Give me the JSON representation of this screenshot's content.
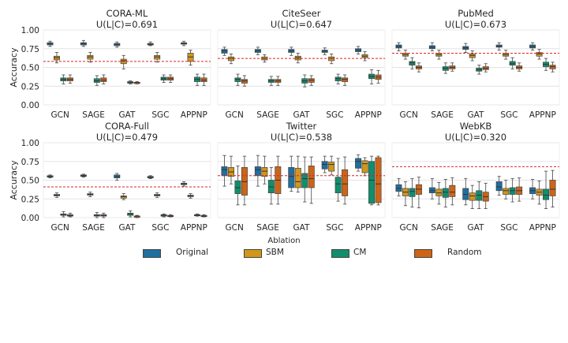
{
  "chart_data": [
    {
      "type": "box",
      "title": "CORA-ML",
      "subtitle": "U(L|C)=0.691",
      "ylabel": "Accuracy",
      "ylim": [
        0,
        1
      ],
      "yticks": [
        "0.00",
        "0.25",
        "0.50",
        "0.75",
        "1.00"
      ],
      "reference_line": 0.58,
      "categories": [
        "GCN",
        "SAGE",
        "GAT",
        "SGC",
        "APPNP"
      ],
      "series": [
        {
          "name": "Original",
          "boxes": [
            [
              0.78,
              0.8,
              0.82,
              0.83,
              0.85
            ],
            [
              0.78,
              0.8,
              0.82,
              0.83,
              0.86
            ],
            [
              0.77,
              0.79,
              0.81,
              0.82,
              0.84
            ],
            [
              0.79,
              0.8,
              0.81,
              0.82,
              0.84
            ],
            [
              0.79,
              0.81,
              0.82,
              0.83,
              0.85
            ]
          ]
        },
        {
          "name": "SBM",
          "boxes": [
            [
              0.56,
              0.6,
              0.63,
              0.65,
              0.7
            ],
            [
              0.57,
              0.61,
              0.64,
              0.66,
              0.7
            ],
            [
              0.48,
              0.55,
              0.59,
              0.61,
              0.66
            ],
            [
              0.57,
              0.61,
              0.64,
              0.66,
              0.7
            ],
            [
              0.53,
              0.58,
              0.64,
              0.69,
              0.73
            ]
          ]
        },
        {
          "name": "CM",
          "boxes": [
            [
              0.28,
              0.32,
              0.34,
              0.36,
              0.4
            ],
            [
              0.26,
              0.3,
              0.32,
              0.35,
              0.39
            ],
            [
              0.28,
              0.29,
              0.3,
              0.31,
              0.32
            ],
            [
              0.3,
              0.33,
              0.35,
              0.37,
              0.4
            ],
            [
              0.26,
              0.31,
              0.34,
              0.37,
              0.41
            ]
          ]
        },
        {
          "name": "Random",
          "boxes": [
            [
              0.29,
              0.32,
              0.34,
              0.36,
              0.4
            ],
            [
              0.28,
              0.31,
              0.33,
              0.36,
              0.4
            ],
            [
              0.28,
              0.29,
              0.3,
              0.3,
              0.31
            ],
            [
              0.3,
              0.33,
              0.35,
              0.37,
              0.4
            ],
            [
              0.26,
              0.31,
              0.33,
              0.36,
              0.41
            ]
          ]
        }
      ]
    },
    {
      "type": "box",
      "title": "CiteSeer",
      "subtitle": "U(L|C)=0.647",
      "ylabel": "",
      "ylim": [
        0,
        1
      ],
      "reference_line": 0.62,
      "categories": [
        "GCN",
        "SAGE",
        "GAT",
        "SGC",
        "APPNP"
      ],
      "series": [
        {
          "name": "Original",
          "boxes": [
            [
              0.66,
              0.69,
              0.72,
              0.74,
              0.77
            ],
            [
              0.67,
              0.7,
              0.72,
              0.74,
              0.77
            ],
            [
              0.66,
              0.7,
              0.72,
              0.74,
              0.77
            ],
            [
              0.67,
              0.7,
              0.72,
              0.73,
              0.76
            ],
            [
              0.68,
              0.71,
              0.73,
              0.75,
              0.78
            ]
          ]
        },
        {
          "name": "SBM",
          "boxes": [
            [
              0.55,
              0.59,
              0.62,
              0.64,
              0.68
            ],
            [
              0.57,
              0.6,
              0.62,
              0.64,
              0.67
            ],
            [
              0.56,
              0.6,
              0.63,
              0.65,
              0.69
            ],
            [
              0.55,
              0.59,
              0.62,
              0.64,
              0.68
            ],
            [
              0.59,
              0.63,
              0.65,
              0.67,
              0.71
            ]
          ]
        },
        {
          "name": "CM",
          "boxes": [
            [
              0.26,
              0.31,
              0.34,
              0.36,
              0.41
            ],
            [
              0.26,
              0.3,
              0.32,
              0.34,
              0.38
            ],
            [
              0.24,
              0.29,
              0.32,
              0.35,
              0.4
            ],
            [
              0.28,
              0.32,
              0.35,
              0.37,
              0.41
            ],
            [
              0.28,
              0.35,
              0.38,
              0.41,
              0.47
            ]
          ]
        },
        {
          "name": "Random",
          "boxes": [
            [
              0.25,
              0.29,
              0.32,
              0.34,
              0.39
            ],
            [
              0.26,
              0.3,
              0.32,
              0.34,
              0.38
            ],
            [
              0.26,
              0.3,
              0.33,
              0.35,
              0.39
            ],
            [
              0.26,
              0.31,
              0.34,
              0.36,
              0.4
            ],
            [
              0.29,
              0.34,
              0.37,
              0.4,
              0.46
            ]
          ]
        }
      ]
    },
    {
      "type": "box",
      "title": "PubMed",
      "subtitle": "U(L|C)=0.673",
      "ylabel": "",
      "ylim": [
        0,
        1
      ],
      "reference_line": 0.69,
      "categories": [
        "GCN",
        "SAGE",
        "GAT",
        "SGC",
        "APPNP"
      ],
      "series": [
        {
          "name": "Original",
          "boxes": [
            [
              0.72,
              0.76,
              0.78,
              0.8,
              0.83
            ],
            [
              0.72,
              0.75,
              0.77,
              0.79,
              0.83
            ],
            [
              0.7,
              0.74,
              0.76,
              0.78,
              0.82
            ],
            [
              0.73,
              0.77,
              0.78,
              0.8,
              0.83
            ],
            [
              0.73,
              0.76,
              0.78,
              0.8,
              0.83
            ]
          ]
        },
        {
          "name": "SBM",
          "boxes": [
            [
              0.61,
              0.65,
              0.67,
              0.69,
              0.73
            ],
            [
              0.61,
              0.65,
              0.67,
              0.69,
              0.73
            ],
            [
              0.59,
              0.63,
              0.66,
              0.68,
              0.72
            ],
            [
              0.61,
              0.65,
              0.67,
              0.69,
              0.73
            ],
            [
              0.61,
              0.65,
              0.68,
              0.7,
              0.74
            ]
          ]
        },
        {
          "name": "CM",
          "boxes": [
            [
              0.48,
              0.53,
              0.56,
              0.58,
              0.63
            ],
            [
              0.42,
              0.46,
              0.49,
              0.51,
              0.56
            ],
            [
              0.41,
              0.45,
              0.47,
              0.49,
              0.53
            ],
            [
              0.48,
              0.53,
              0.55,
              0.58,
              0.63
            ],
            [
              0.46,
              0.51,
              0.54,
              0.57,
              0.62
            ]
          ]
        },
        {
          "name": "Random",
          "boxes": [
            [
              0.44,
              0.48,
              0.5,
              0.52,
              0.56
            ],
            [
              0.45,
              0.48,
              0.5,
              0.52,
              0.56
            ],
            [
              0.44,
              0.47,
              0.49,
              0.51,
              0.55
            ],
            [
              0.45,
              0.48,
              0.5,
              0.52,
              0.56
            ],
            [
              0.44,
              0.48,
              0.51,
              0.53,
              0.57
            ]
          ]
        }
      ]
    },
    {
      "type": "box",
      "title": "CORA-Full",
      "subtitle": "U(L|C)=0.479",
      "ylabel": "Accuracy",
      "ylim": [
        0,
        1
      ],
      "yticks": [
        "0.00",
        "0.25",
        "0.50",
        "0.75",
        "1.00"
      ],
      "reference_line": 0.41,
      "categories": [
        "GCN",
        "SAGE",
        "GAT",
        "SGC",
        "APPNP"
      ],
      "series": [
        {
          "name": "Original",
          "boxes": [
            [
              0.53,
              0.54,
              0.55,
              0.56,
              0.57
            ],
            [
              0.54,
              0.55,
              0.56,
              0.57,
              0.58
            ],
            [
              0.5,
              0.53,
              0.55,
              0.57,
              0.59
            ],
            [
              0.52,
              0.53,
              0.54,
              0.55,
              0.56
            ],
            [
              0.42,
              0.44,
              0.45,
              0.46,
              0.48
            ]
          ]
        },
        {
          "name": "SBM",
          "boxes": [
            [
              0.27,
              0.29,
              0.3,
              0.31,
              0.33
            ],
            [
              0.28,
              0.3,
              0.31,
              0.32,
              0.34
            ],
            [
              0.24,
              0.26,
              0.28,
              0.29,
              0.32
            ],
            [
              0.27,
              0.29,
              0.3,
              0.31,
              0.33
            ],
            [
              0.26,
              0.28,
              0.29,
              0.3,
              0.32
            ]
          ]
        },
        {
          "name": "CM",
          "boxes": [
            [
              0.01,
              0.03,
              0.04,
              0.05,
              0.08
            ],
            [
              0.0,
              0.02,
              0.03,
              0.04,
              0.07
            ],
            [
              0.01,
              0.03,
              0.05,
              0.06,
              0.09
            ],
            [
              0.01,
              0.02,
              0.03,
              0.04,
              0.05
            ],
            [
              0.02,
              0.03,
              0.03,
              0.04,
              0.05
            ]
          ]
        },
        {
          "name": "Random",
          "boxes": [
            [
              0.01,
              0.02,
              0.03,
              0.04,
              0.06
            ],
            [
              0.0,
              0.02,
              0.03,
              0.04,
              0.06
            ],
            [
              0.0,
              0.01,
              0.02,
              0.02,
              0.03
            ],
            [
              0.01,
              0.02,
              0.02,
              0.03,
              0.04
            ],
            [
              0.01,
              0.02,
              0.02,
              0.03,
              0.04
            ]
          ]
        }
      ]
    },
    {
      "type": "box",
      "title": "Twitter",
      "subtitle": "U(L|C)=0.538",
      "ylabel": "",
      "ylim": [
        0,
        1
      ],
      "reference_line": 0.56,
      "categories": [
        "GCN",
        "SAGE",
        "GAT",
        "SGC",
        "APPNP"
      ],
      "series": [
        {
          "name": "Original",
          "boxes": [
            [
              0.42,
              0.56,
              0.64,
              0.68,
              0.83
            ],
            [
              0.42,
              0.56,
              0.64,
              0.68,
              0.83
            ],
            [
              0.35,
              0.4,
              0.55,
              0.67,
              0.82
            ],
            [
              0.6,
              0.65,
              0.71,
              0.75,
              0.82
            ],
            [
              0.62,
              0.66,
              0.75,
              0.79,
              0.84
            ]
          ]
        },
        {
          "name": "SBM",
          "boxes": [
            [
              0.45,
              0.55,
              0.61,
              0.67,
              0.82
            ],
            [
              0.45,
              0.55,
              0.62,
              0.67,
              0.82
            ],
            [
              0.34,
              0.4,
              0.48,
              0.66,
              0.82
            ],
            [
              0.57,
              0.62,
              0.71,
              0.74,
              0.82
            ],
            [
              0.56,
              0.6,
              0.72,
              0.76,
              0.8
            ]
          ]
        },
        {
          "name": "CM",
          "boxes": [
            [
              0.17,
              0.32,
              0.4,
              0.49,
              0.69
            ],
            [
              0.18,
              0.33,
              0.41,
              0.5,
              0.67
            ],
            [
              0.21,
              0.4,
              0.52,
              0.59,
              0.81
            ],
            [
              0.22,
              0.33,
              0.45,
              0.54,
              0.79
            ],
            [
              0.17,
              0.19,
              0.5,
              0.75,
              0.82
            ]
          ]
        },
        {
          "name": "Random",
          "boxes": [
            [
              0.17,
              0.3,
              0.48,
              0.67,
              0.82
            ],
            [
              0.18,
              0.32,
              0.5,
              0.68,
              0.82
            ],
            [
              0.19,
              0.4,
              0.52,
              0.69,
              0.81
            ],
            [
              0.18,
              0.29,
              0.45,
              0.64,
              0.81
            ],
            [
              0.17,
              0.2,
              0.45,
              0.8,
              0.82
            ]
          ]
        }
      ]
    },
    {
      "type": "box",
      "title": "WebKB",
      "subtitle": "U(L|C)=0.320",
      "ylabel": "",
      "ylim": [
        0,
        1
      ],
      "reference_line": 0.68,
      "categories": [
        "GCN",
        "SAGE",
        "GAT",
        "SGC",
        "APPNP"
      ],
      "series": [
        {
          "name": "Original",
          "boxes": [
            [
              0.29,
              0.35,
              0.39,
              0.44,
              0.52
            ],
            [
              0.25,
              0.33,
              0.36,
              0.4,
              0.52
            ],
            [
              0.17,
              0.24,
              0.31,
              0.39,
              0.52
            ],
            [
              0.3,
              0.36,
              0.41,
              0.48,
              0.55
            ],
            [
              0.25,
              0.32,
              0.36,
              0.4,
              0.51
            ]
          ]
        },
        {
          "name": "SBM",
          "boxes": [
            [
              0.16,
              0.29,
              0.34,
              0.39,
              0.48
            ],
            [
              0.18,
              0.29,
              0.33,
              0.38,
              0.47
            ],
            [
              0.12,
              0.23,
              0.29,
              0.33,
              0.43
            ],
            [
              0.25,
              0.31,
              0.36,
              0.39,
              0.5
            ],
            [
              0.18,
              0.3,
              0.34,
              0.38,
              0.49
            ]
          ]
        },
        {
          "name": "CM",
          "boxes": [
            [
              0.14,
              0.28,
              0.35,
              0.39,
              0.52
            ],
            [
              0.14,
              0.27,
              0.34,
              0.39,
              0.51
            ],
            [
              0.12,
              0.23,
              0.3,
              0.36,
              0.48
            ],
            [
              0.21,
              0.31,
              0.36,
              0.4,
              0.52
            ],
            [
              0.12,
              0.24,
              0.3,
              0.38,
              0.62
            ]
          ]
        },
        {
          "name": "Random",
          "boxes": [
            [
              0.13,
              0.31,
              0.38,
              0.44,
              0.54
            ],
            [
              0.17,
              0.28,
              0.34,
              0.43,
              0.53
            ],
            [
              0.12,
              0.22,
              0.28,
              0.34,
              0.46
            ],
            [
              0.22,
              0.31,
              0.36,
              0.41,
              0.53
            ],
            [
              0.14,
              0.29,
              0.38,
              0.5,
              0.63
            ]
          ]
        }
      ]
    }
  ],
  "legend": {
    "title": "Ablation",
    "items": [
      {
        "label": "Original",
        "color": "#1f6f9f"
      },
      {
        "label": "SBM",
        "color": "#d1961b"
      },
      {
        "label": "CM",
        "color": "#0f8f6b"
      },
      {
        "label": "Random",
        "color": "#cd6416"
      }
    ]
  },
  "colors": {
    "reference_line": "#d62728"
  }
}
